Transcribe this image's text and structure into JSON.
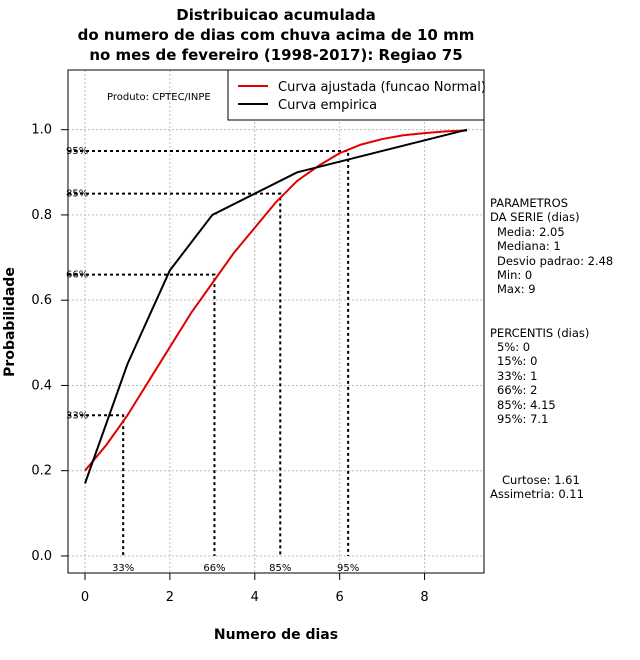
{
  "chart_data": {
    "type": "line",
    "title": [
      "Distribuicao acumulada",
      "do numero de dias com chuva acima de 10 mm",
      "no mes de fevereiro (1998-2017): Regiao 75"
    ],
    "xlabel": "Numero de dias",
    "ylabel": "Probabilidade",
    "xlim": [
      -0.4,
      9.4
    ],
    "ylim": [
      -0.04,
      1.14
    ],
    "x_ticks": [
      0,
      2,
      4,
      6,
      8
    ],
    "y_ticks": [
      0.0,
      0.2,
      0.4,
      0.6,
      0.8,
      1.0
    ],
    "y_tick_labels": [
      "0.0",
      "0.2",
      "0.4",
      "0.6",
      "0.8",
      "1.0"
    ],
    "product_label": "Produto: CPTEC/INPE",
    "legend": {
      "position": "top-right",
      "entries": [
        {
          "label": "Curva ajustada (funcao Normal)",
          "color": "#e00000"
        },
        {
          "label": "Curva empirica",
          "color": "#000000"
        }
      ]
    },
    "series": [
      {
        "name": "Curva ajustada (funcao Normal)",
        "color": "#e00000",
        "x": [
          0,
          0.5,
          1,
          1.5,
          2,
          2.5,
          3,
          3.5,
          4,
          4.5,
          5,
          5.5,
          6,
          6.5,
          7,
          7.5,
          8,
          8.5,
          9
        ],
        "y": [
          0.2,
          0.26,
          0.33,
          0.41,
          0.49,
          0.57,
          0.64,
          0.71,
          0.77,
          0.83,
          0.88,
          0.915,
          0.945,
          0.965,
          0.978,
          0.987,
          0.992,
          0.996,
          0.998
        ]
      },
      {
        "name": "Curva empirica",
        "color": "#000000",
        "x": [
          0,
          1,
          2,
          3,
          5,
          9
        ],
        "y": [
          0.17,
          0.45,
          0.67,
          0.8,
          0.9,
          1.0
        ]
      }
    ],
    "percentile_markers": [
      {
        "label": "33%",
        "x": 0.9,
        "y": 0.33
      },
      {
        "label": "66%",
        "x": 3.05,
        "y": 0.66
      },
      {
        "label": "85%",
        "x": 4.6,
        "y": 0.85
      },
      {
        "label": "95%",
        "x": 6.2,
        "y": 0.95
      }
    ],
    "parameters": {
      "heading": [
        "PARAMETROS",
        "DA SERIE (dias)"
      ],
      "lines": [
        "Media: 2.05",
        "Mediana: 1",
        "Desvio padrao: 2.48",
        "Min: 0",
        "Max: 9"
      ]
    },
    "percentis": {
      "heading": "PERCENTIS (dias)",
      "lines": [
        "5%: 0",
        "15%: 0",
        "33%: 1",
        "66%: 2",
        "85%: 4.15",
        "95%: 7.1"
      ]
    },
    "shape_stats": [
      "Curtose: 1.61",
      "Assimetria: 0.11"
    ]
  }
}
